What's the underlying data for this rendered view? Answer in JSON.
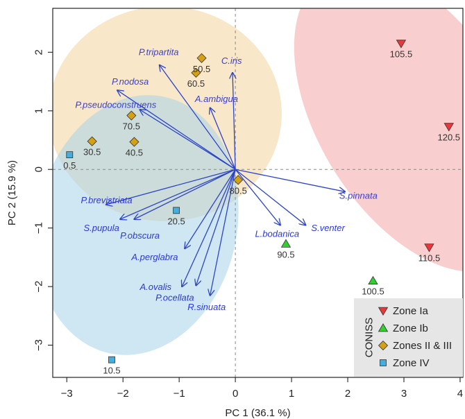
{
  "chart_data": {
    "type": "scatter",
    "xlabel": "PC 1 (36.1 %)",
    "ylabel": "PC 2 (15.9 %)",
    "xlim": [
      -3.25,
      4.05
    ],
    "ylim": [
      -3.55,
      2.75
    ],
    "xticks": [
      -3,
      -2,
      -1,
      0,
      1,
      2,
      3,
      4
    ],
    "yticks": [
      -3,
      -2,
      -1,
      0,
      1,
      2
    ],
    "grid": false,
    "zero_lines": true,
    "legend": {
      "title": "CONISS",
      "position": "bottom-right",
      "entries": [
        {
          "label": "Zone Ia",
          "shape": "triangle-down",
          "color": "#e8383b"
        },
        {
          "label": "Zone Ib",
          "shape": "triangle-up",
          "color": "#2ed12e"
        },
        {
          "label": "Zones II & III",
          "shape": "diamond",
          "color": "#d4a016"
        },
        {
          "label": "Zone IV",
          "shape": "square",
          "color": "#45aedb"
        }
      ]
    },
    "series": [
      {
        "name": "Zone Ia",
        "points": [
          {
            "x": 2.95,
            "y": 2.15,
            "label": "105.5"
          },
          {
            "x": 3.8,
            "y": 0.73,
            "label": "120.5"
          },
          {
            "x": 3.45,
            "y": -1.33,
            "label": "110.5"
          }
        ]
      },
      {
        "name": "Zone Ib",
        "points": [
          {
            "x": 0.9,
            "y": -1.27,
            "label": "90.5"
          },
          {
            "x": 2.45,
            "y": -1.9,
            "label": "100.5"
          }
        ]
      },
      {
        "name": "Zones II & III",
        "points": [
          {
            "x": -0.6,
            "y": 1.9,
            "label": "50.5"
          },
          {
            "x": -0.7,
            "y": 1.65,
            "label": "60.5"
          },
          {
            "x": -1.85,
            "y": 0.92,
            "label": "70.5"
          },
          {
            "x": -2.55,
            "y": 0.48,
            "label": "30.5"
          },
          {
            "x": -1.8,
            "y": 0.47,
            "label": "40.5"
          },
          {
            "x": 0.05,
            "y": -0.18,
            "label": "80.5"
          }
        ]
      },
      {
        "name": "Zone IV",
        "points": [
          {
            "x": -2.95,
            "y": 0.25,
            "label": "0.5"
          },
          {
            "x": -1.05,
            "y": -0.7,
            "label": "20.5"
          },
          {
            "x": -2.2,
            "y": -3.25,
            "label": "10.5"
          }
        ]
      }
    ],
    "loadings": [
      {
        "name": "P.tripartita",
        "x": -1.35,
        "y": 1.78
      },
      {
        "name": "C.iris",
        "x": -0.05,
        "y": 1.65
      },
      {
        "name": "P.nodosa",
        "x": -2.1,
        "y": 1.35
      },
      {
        "name": "A.ambigua",
        "x": -0.45,
        "y": 1.05
      },
      {
        "name": "P.pseudoconstruens",
        "x": -1.7,
        "y": 1.02
      },
      {
        "name": "S.pinnata",
        "x": 1.95,
        "y": -0.38
      },
      {
        "name": "L.bodanica",
        "x": 0.8,
        "y": -0.95
      },
      {
        "name": "S.venter",
        "x": 1.25,
        "y": -0.95
      },
      {
        "name": "P.brevistriata",
        "x": -2.3,
        "y": -0.6
      },
      {
        "name": "S.pupula",
        "x": -2.05,
        "y": -0.85
      },
      {
        "name": "P.obscura",
        "x": -1.8,
        "y": -0.85
      },
      {
        "name": "A.perglabra",
        "x": -0.9,
        "y": -1.35
      },
      {
        "name": "A.ovalis",
        "x": -0.95,
        "y": -2.0
      },
      {
        "name": "P.ocellata",
        "x": -0.7,
        "y": -1.98
      },
      {
        "name": "R.sinuata",
        "x": -0.45,
        "y": -2.15
      }
    ],
    "ellipses": [
      {
        "zone": "Zone Ia",
        "color": "#f4a6a6"
      },
      {
        "zone": "Zones II & III",
        "color": "#f2d49a"
      },
      {
        "zone": "Zone IV",
        "color": "#a8d4ea"
      }
    ]
  }
}
